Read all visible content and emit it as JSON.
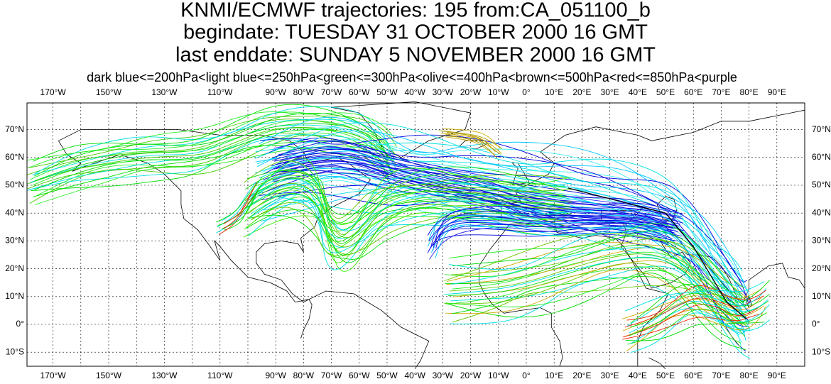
{
  "header": {
    "title": "KNMI/ECMWF trajectories:  195 from:CA_051100_b",
    "begindate": "begindate:  TUESDAY   31 OCTOBER   2000 16 GMT",
    "enddate": "last enddate:  SUNDAY     5 NOVEMBER  2000 16 GMT",
    "legend": "dark blue<=200hPa<light blue<=250hPa<green<=300hPa<olive<=400hPa<brown<=500hPa<red<=850hPa<purple"
  },
  "map": {
    "lon_ticks": [
      {
        "value": -170,
        "label": "170°W"
      },
      {
        "value": -150,
        "label": "150°W"
      },
      {
        "value": -130,
        "label": "130°W"
      },
      {
        "value": -110,
        "label": "110°W"
      },
      {
        "value": -90,
        "label": "90°W"
      },
      {
        "value": -80,
        "label": "80°W"
      },
      {
        "value": -70,
        "label": "70°W"
      },
      {
        "value": -60,
        "label": "60°W"
      },
      {
        "value": -50,
        "label": "50°W"
      },
      {
        "value": -40,
        "label": "40°W"
      },
      {
        "value": -30,
        "label": "30°W"
      },
      {
        "value": -20,
        "label": "20°W"
      },
      {
        "value": -10,
        "label": "10°W"
      },
      {
        "value": 0,
        "label": "0°"
      },
      {
        "value": 10,
        "label": "10°E"
      },
      {
        "value": 20,
        "label": "20°E"
      },
      {
        "value": 30,
        "label": "30°E"
      },
      {
        "value": 40,
        "label": "40°E"
      },
      {
        "value": 50,
        "label": "50°E"
      },
      {
        "value": 60,
        "label": "60°E"
      },
      {
        "value": 70,
        "label": "70°E"
      },
      {
        "value": 80,
        "label": "80°E"
      },
      {
        "value": 90,
        "label": "90°E"
      }
    ],
    "lat_ticks": [
      {
        "value": 70,
        "label": "70°N"
      },
      {
        "value": 60,
        "label": "60°N"
      },
      {
        "value": 50,
        "label": "50°N"
      },
      {
        "value": 40,
        "label": "40°N"
      },
      {
        "value": 30,
        "label": "30°N"
      },
      {
        "value": 20,
        "label": "20°N"
      },
      {
        "value": 10,
        "label": "10°N"
      },
      {
        "value": 0,
        "label": "0°"
      },
      {
        "value": -10,
        "label": "10°S"
      }
    ]
  }
}
